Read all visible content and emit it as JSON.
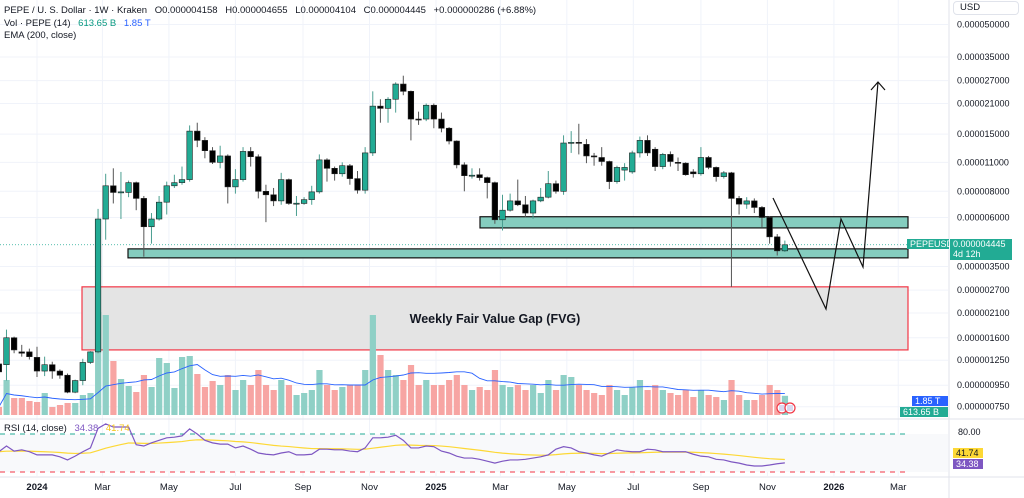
{
  "header": {
    "symbol": "PEPE / U. S. Dollar · 1W · Kraken",
    "open": "O0.000004158",
    "high": "H0.000004655",
    "low": "L0.000004104",
    "close": "C0.000004445",
    "change": "+0.000000286 (+6.88%)",
    "volume_label": "Vol · PEPE (14)",
    "volume_value": "613.65 B",
    "volume_ma_value": "1.85 T",
    "ema_label": "EMA (200, close)"
  },
  "currency": "USD",
  "price_tag": {
    "symbol": "PEPEUSD",
    "value": "0.000004445",
    "countdown": "4d 12h"
  },
  "volume_tags": {
    "ma": "1.85 T",
    "volume": "613.65 B"
  },
  "rsi": {
    "label": "RSI (14, close)",
    "value": "34.38",
    "ma_value": "41.74",
    "upper_band_label": "80.00"
  },
  "annotation": {
    "fvg_label": "Weekly Fair Value Gap (FVG)"
  },
  "colors": {
    "up": "#22ab94",
    "down": "#000000",
    "vol_up": "#8fd0c6",
    "vol_down": "#f7a5a3",
    "vol_ma": "#2962ff",
    "rsi": "#7e57c2",
    "rsi_ma": "#fdd835",
    "zone": "#85cdbf",
    "fvg_border": "#f23645"
  },
  "chart_data": {
    "type": "candlestick",
    "interval": "1W",
    "y_scale": "log",
    "grid": true,
    "price_ticks": [
      5e-05,
      3.5e-05,
      2.7e-05,
      2.1e-05,
      1.5e-05,
      1.1e-05,
      8e-06,
      6e-06,
      3.5e-06,
      2.7e-06,
      2.1e-06,
      1.6e-06,
      1.25e-06,
      9.5e-07,
      7.5e-07
    ],
    "price_tick_labels": [
      "0.000050000",
      "0.000035000",
      "0.000027000",
      "0.000021000",
      "0.000015000",
      "0.000011000",
      "0.000008000",
      "0.000006000",
      "0.000003500",
      "0.000002700",
      "0.000002100",
      "0.000001600",
      "0.000001250",
      "0.000000950",
      "0.000000750"
    ],
    "x_ticks": [
      {
        "label": "2024",
        "date": "2024-01-01",
        "bold": true
      },
      {
        "label": "Mar",
        "date": "2024-03-01"
      },
      {
        "label": "May",
        "date": "2024-05-01"
      },
      {
        "label": "Jul",
        "date": "2024-07-01"
      },
      {
        "label": "Sep",
        "date": "2024-09-01"
      },
      {
        "label": "Nov",
        "date": "2024-11-01"
      },
      {
        "label": "2025",
        "date": "2025-01-01",
        "bold": true
      },
      {
        "label": "Mar",
        "date": "2025-03-01"
      },
      {
        "label": "May",
        "date": "2025-05-01"
      },
      {
        "label": "Jul",
        "date": "2025-07-01"
      },
      {
        "label": "Sep",
        "date": "2025-09-01"
      },
      {
        "label": "Nov",
        "date": "2025-11-01"
      },
      {
        "label": "2026",
        "date": "2026-01-01",
        "bold": true
      },
      {
        "label": "Mar",
        "date": "2026-03-01"
      }
    ],
    "candles_ohlcv": [
      [
        1.2e-06,
        1.25e-06,
        1.05e-06,
        1.1e-06,
        256000000000.0
      ],
      [
        1.19e-06,
        1.75e-06,
        1e-06,
        1.6e-06,
        1120000000000.0
      ],
      [
        1.6e-06,
        1.62e-06,
        1.35e-06,
        1.4e-06,
        544000000000.0
      ],
      [
        1.37e-06,
        1.48e-06,
        1.3e-06,
        1.35e-06,
        544000000000.0
      ],
      [
        1.37e-06,
        1.42e-06,
        1.26e-06,
        1.3e-06,
        448000000000.0
      ],
      [
        1.29e-06,
        1.45e-06,
        1.04e-06,
        1.11e-06,
        416000000000.0
      ],
      [
        1.11e-06,
        1.3e-06,
        1.05e-06,
        1.19e-06,
        704000000000.0
      ],
      [
        1.19e-06,
        1.23e-06,
        1.02e-06,
        1.11e-06,
        256000000000.0
      ],
      [
        1.11e-06,
        1.13e-06,
        1.02e-06,
        1.06e-06,
        320000000000.0
      ],
      [
        1.06e-06,
        1.08e-06,
        8.7e-07,
        8.8e-07,
        384000000000.0
      ],
      [
        8.8e-07,
        1.01e-06,
        8.7e-07,
        1e-06,
        384000000000.0
      ],
      [
        1e-06,
        1.27e-06,
        9.5e-07,
        1.22e-06,
        640000000000.0
      ],
      [
        1.22e-06,
        1.38e-06,
        1.2e-06,
        1.37e-06,
        704000000000.0
      ],
      [
        1.37e-06,
        6.6e-06,
        1.35e-06,
        5.9e-06,
        3296000000000.0
      ],
      [
        5.9e-06,
        9.7e-06,
        4.7e-06,
        8.5e-06,
        3200000000000.0
      ],
      [
        8.5e-06,
        1.03e-05,
        7e-06,
        7.9e-06,
        1728000000000.0
      ],
      [
        7.9e-06,
        9.9e-06,
        5.9e-06,
        7.95e-06,
        1152000000000.0
      ],
      [
        7.9e-06,
        9e-06,
        7.5e-06,
        8.8e-06,
        928000000000.0
      ],
      [
        8.8e-06,
        8.9e-06,
        6.5e-06,
        7.4e-06,
        736000000000.0
      ],
      [
        7.4e-06,
        7.6e-06,
        3.9e-06,
        5.42e-06,
        1280000000000.0
      ],
      [
        5.42e-06,
        6.3e-06,
        4.5e-06,
        5.9e-06,
        896000000000.0
      ],
      [
        5.9e-06,
        7.6e-06,
        5.8e-06,
        7.1e-06,
        1824000000000.0
      ],
      [
        7.1e-06,
        8.9e-06,
        6.2e-06,
        8.5e-06,
        1664000000000.0
      ],
      [
        8.5e-06,
        9.6e-06,
        8.3e-06,
        8.8e-06,
        864000000000.0
      ],
      [
        8.8e-06,
        1.05e-05,
        8.6e-06,
        9.1e-06,
        1856000000000.0
      ],
      [
        9.1e-06,
        1.65e-05,
        8.9e-06,
        1.55e-05,
        1888000000000.0
      ],
      [
        1.55e-05,
        1.7e-05,
        1.3e-05,
        1.4e-05,
        1312000000000.0
      ],
      [
        1.4e-05,
        1.45e-05,
        1.15e-05,
        1.25e-05,
        896000000000.0
      ],
      [
        1.25e-05,
        1.3e-05,
        1.08e-05,
        1.1e-05,
        1088000000000.0
      ],
      [
        1.1e-05,
        1.32e-05,
        1.03e-05,
        1.18e-05,
        960000000000.0
      ],
      [
        1.18e-05,
        1.2e-05,
        7e-06,
        8.4e-06,
        1280000000000.0
      ],
      [
        8.4e-06,
        1.02e-05,
        7.8e-06,
        9.1e-06,
        800000000000.0
      ],
      [
        9.1e-06,
        1.3e-05,
        8.9e-06,
        1.24e-05,
        1120000000000.0
      ],
      [
        1.24e-05,
        1.3e-05,
        1.05e-05,
        1.17e-05,
        960000000000.0
      ],
      [
        1.17e-05,
        1.2e-05,
        7.4e-06,
        8e-06,
        1440000000000.0
      ],
      [
        8e-06,
        8.6e-06,
        5.7e-06,
        7.7e-06,
        960000000000.0
      ],
      [
        7.7e-06,
        8.3e-06,
        6.8e-06,
        7.2e-06,
        800000000000.0
      ],
      [
        7.2e-06,
        9.8e-06,
        6.9e-06,
        9.1e-06,
        1120000000000.0
      ],
      [
        9.1e-06,
        9.2e-06,
        6.9e-06,
        7e-06,
        960000000000.0
      ],
      [
        7e-06,
        7.6e-06,
        6.1e-06,
        7.02e-06,
        640000000000.0
      ],
      [
        7e-06,
        7.5e-06,
        6.9e-06,
        7.3e-06,
        704000000000.0
      ],
      [
        7.3e-06,
        8.5e-06,
        6.9e-06,
        7.95e-06,
        800000000000.0
      ],
      [
        7.95e-06,
        1.2e-05,
        7.8e-06,
        1.13e-05,
        1440000000000.0
      ],
      [
        1.13e-05,
        1.15e-05,
        8.9e-06,
        1.03e-05,
        960000000000.0
      ],
      [
        1.03e-05,
        1.05e-05,
        9e-06,
        9.7e-06,
        800000000000.0
      ],
      [
        9.7e-06,
        1.1e-05,
        9.4e-06,
        1.06e-05,
        896000000000.0
      ],
      [
        1.06e-05,
        1.08e-05,
        8.6e-06,
        9.2e-06,
        960000000000.0
      ],
      [
        9.2e-06,
        1e-05,
        7.8e-06,
        8.1e-06,
        960000000000.0
      ],
      [
        8.1e-06,
        1.3e-05,
        7.8e-06,
        1.22e-05,
        1440000000000.0
      ],
      [
        1.22e-05,
        2.4e-05,
        1.18e-05,
        2.04e-05,
        3200000000000.0
      ],
      [
        2.04e-05,
        2.2e-05,
        1.7e-05,
        1.99e-05,
        1920000000000.0
      ],
      [
        1.99e-05,
        2.25e-05,
        1.7e-05,
        2.2e-05,
        1440000000000.0
      ],
      [
        2.2e-05,
        2.65e-05,
        1.9e-05,
        2.6e-05,
        1280000000000.0
      ],
      [
        2.6e-05,
        2.85e-05,
        2.3e-05,
        2.4e-05,
        1120000000000.0
      ],
      [
        2.4e-05,
        2.42e-05,
        1.4e-05,
        1.77e-05,
        1600000000000.0
      ],
      [
        1.77e-05,
        1.92e-05,
        1.66e-05,
        1.76e-05,
        960000000000.0
      ],
      [
        1.77e-05,
        2.1e-05,
        1.73e-05,
        2.06e-05,
        1120000000000.0
      ],
      [
        2.06e-05,
        2.1e-05,
        1.6e-05,
        1.77e-05,
        960000000000.0
      ],
      [
        1.77e-05,
        1.9e-05,
        1.53e-05,
        1.6e-05,
        960000000000.0
      ],
      [
        1.6e-05,
        1.62e-05,
        1.34e-05,
        1.39e-05,
        1120000000000.0
      ],
      [
        1.39e-05,
        1.4e-05,
        1.03e-05,
        1.07e-05,
        1280000000000.0
      ],
      [
        1.07e-05,
        1.1e-05,
        8e-06,
        9.5e-06,
        960000000000.0
      ],
      [
        9.5e-06,
        1.03e-05,
        9.2e-06,
        9.55e-06,
        800000000000.0
      ],
      [
        9.6e-06,
        1.03e-05,
        9e-06,
        9.3e-06,
        896000000000.0
      ],
      [
        9.3e-06,
        9.4e-06,
        7.4e-06,
        8.8e-06,
        800000000000.0
      ],
      [
        8.8e-06,
        8.9e-06,
        5.6e-06,
        5.85e-06,
        1440000000000.0
      ],
      [
        5.85e-06,
        7.7e-06,
        5.2e-06,
        6.5e-06,
        960000000000.0
      ],
      [
        6.5e-06,
        7.8e-06,
        6.4e-06,
        7.2e-06,
        896000000000.0
      ],
      [
        7.2e-06,
        9.1e-06,
        6.8e-06,
        6.9e-06,
        960000000000.0
      ],
      [
        6.9e-06,
        7.6e-06,
        6e-06,
        6.3e-06,
        800000000000.0
      ],
      [
        6.3e-06,
        7.3e-06,
        5.9e-06,
        7.2e-06,
        960000000000.0
      ],
      [
        7.2e-06,
        8.3e-06,
        7.1e-06,
        7.5e-06,
        704000000000.0
      ],
      [
        7.5e-06,
        1e-05,
        7.4e-06,
        8.7e-06,
        1120000000000.0
      ],
      [
        8.7e-06,
        9e-06,
        7.8e-06,
        8e-06,
        800000000000.0
      ],
      [
        8e-06,
        1.48e-05,
        7.7e-06,
        1.36e-05,
        1280000000000.0
      ],
      [
        1.36e-05,
        1.55e-05,
        1.22e-05,
        1.37e-05,
        1216000000000.0
      ],
      [
        1.37e-05,
        1.68e-05,
        1.2e-05,
        1.365e-05,
        960000000000.0
      ],
      [
        1.34e-05,
        1.42e-05,
        1.09e-05,
        1.18e-05,
        800000000000.0
      ],
      [
        1.18e-05,
        1.22e-05,
        1.06e-05,
        1.17e-05,
        704000000000.0
      ],
      [
        1.16e-05,
        1.3e-05,
        1.06e-05,
        1.11e-05,
        640000000000.0
      ],
      [
        1.11e-05,
        1.12e-05,
        8.2e-06,
        8.9e-06,
        960000000000.0
      ],
      [
        8.9e-06,
        1.06e-05,
        8.7e-06,
        1.04e-05,
        800000000000.0
      ],
      [
        1.01e-05,
        1.09e-05,
        9e-06,
        1.04e-05,
        640000000000.0
      ],
      [
        9.9e-06,
        1.25e-05,
        9.7e-06,
        1.22e-05,
        896000000000.0
      ],
      [
        1.22e-05,
        1.46e-05,
        1.16e-05,
        1.4e-05,
        1120000000000.0
      ],
      [
        1.4e-05,
        1.48e-05,
        1.18e-05,
        1.22e-05,
        800000000000.0
      ],
      [
        1.27e-05,
        1.3e-05,
        1e-05,
        1.05e-05,
        960000000000.0
      ],
      [
        1.05e-05,
        1.22e-05,
        1.02e-05,
        1.2e-05,
        800000000000.0
      ],
      [
        1.2e-05,
        1.24e-05,
        1.05e-05,
        1.11e-05,
        704000000000.0
      ],
      [
        1.1e-05,
        1.16e-05,
        1e-05,
        1.09e-05,
        640000000000.0
      ],
      [
        1.09e-05,
        1.1e-05,
        9.5e-06,
        9.6e-06,
        800000000000.0
      ],
      [
        9.9e-06,
        1.02e-05,
        9.3e-06,
        9.7e-06,
        576000000000.0
      ],
      [
        9.7e-06,
        1.3e-05,
        9.5e-06,
        1.16e-05,
        800000000000.0
      ],
      [
        1.16e-05,
        1.18e-05,
        1.02e-05,
        1.04e-05,
        640000000000.0
      ],
      [
        1.04e-05,
        1.05e-05,
        8.9e-06,
        9.4e-06,
        576000000000.0
      ],
      [
        9.4e-06,
        1e-05,
        9.2e-06,
        9.8e-06,
        480000000000.0
      ],
      [
        9.8e-06,
        9.9e-06,
        2.8e-06,
        7.4e-06,
        1120000000000.0
      ],
      [
        7.4e-06,
        7.6e-06,
        6.2e-06,
        6.95e-06,
        640000000000.0
      ],
      [
        6.95e-06,
        7.5e-06,
        6.6e-06,
        7.2e-06,
        480000000000.0
      ],
      [
        7.2e-06,
        7.4e-06,
        6.3e-06,
        6.7e-06,
        480000000000.0
      ],
      [
        6.7e-06,
        6.8e-06,
        5.4e-06,
        6e-06,
        640000000000.0
      ],
      [
        6e-06,
        6.1e-06,
        4.5e-06,
        4.85e-06,
        960000000000.0
      ],
      [
        4.85e-06,
        5e-06,
        3.95e-06,
        4.158e-06,
        800000000000.0
      ],
      [
        4.158e-06,
        4.655e-06,
        4.104e-06,
        4.445e-06,
        613650000000.0
      ]
    ],
    "rsi_values": [
      52,
      61,
      53,
      55,
      52,
      47,
      47,
      47,
      44,
      39,
      45,
      52,
      58,
      89,
      96,
      91,
      91,
      91,
      63,
      61,
      66,
      70,
      74,
      75,
      77,
      88,
      80,
      70,
      66,
      64,
      64,
      58,
      61,
      56,
      50,
      48,
      47,
      50,
      52,
      47,
      47,
      48,
      56,
      56,
      55,
      55,
      53,
      52,
      58,
      74,
      74,
      75,
      78,
      70,
      58,
      58,
      61,
      60,
      53,
      50,
      45,
      42,
      42,
      40,
      37,
      34,
      37,
      39,
      39,
      40,
      42,
      44,
      47,
      56,
      60,
      58,
      52,
      50,
      47,
      45,
      50,
      55,
      53,
      52,
      52,
      56,
      55,
      52,
      52,
      52,
      52,
      48,
      45,
      44,
      40,
      39,
      36,
      34,
      31,
      29.5,
      29.5,
      31,
      33,
      34.38
    ],
    "rsi_bands": [
      80,
      20
    ],
    "zones": [
      {
        "type": "support",
        "from": 5.35e-06,
        "to": 6.05e-06
      },
      {
        "type": "support",
        "from": 3.85e-06,
        "to": 4.25e-06
      },
      {
        "type": "fvg",
        "from": 1.4e-06,
        "to": 2.8e-06
      }
    ]
  }
}
